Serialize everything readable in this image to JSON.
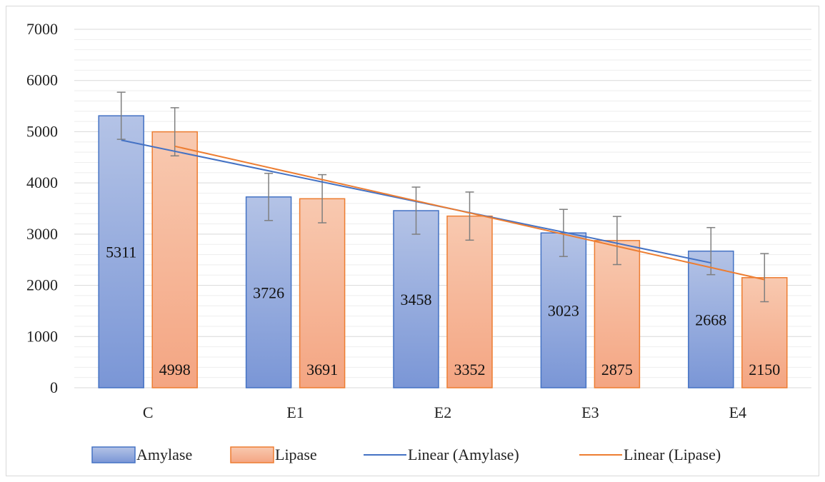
{
  "chart_data": {
    "type": "bar",
    "title": "",
    "xlabel": "",
    "ylabel": "",
    "categories": [
      "C",
      "E1",
      "E2",
      "E3",
      "E4"
    ],
    "ylim": [
      0,
      7000
    ],
    "y_ticks": [
      0,
      1000,
      2000,
      3000,
      4000,
      5000,
      6000,
      7000
    ],
    "grid": "on",
    "legend_position": "bottom",
    "series": [
      {
        "name": "Amylase",
        "values": [
          5311,
          3726,
          3458,
          3023,
          2668
        ],
        "error": [
          460,
          460,
          460,
          460,
          460
        ],
        "color": "#4472c4",
        "fill_top": "#b4c3e6",
        "fill_bottom": "#7a96d6"
      },
      {
        "name": "Lipase",
        "values": [
          4998,
          3691,
          3352,
          2875,
          2150
        ],
        "error": [
          470,
          470,
          470,
          470,
          470
        ],
        "color": "#ed7d31",
        "fill_top": "#f8c9b0",
        "fill_bottom": "#f4a582"
      }
    ],
    "trendlines": [
      {
        "name": "Linear (Amylase)",
        "series": "Amylase",
        "type": "linear",
        "color": "#4472c4"
      },
      {
        "name": "Linear (Lipase)",
        "series": "Lipase",
        "type": "linear",
        "color": "#ed7d31"
      }
    ]
  }
}
